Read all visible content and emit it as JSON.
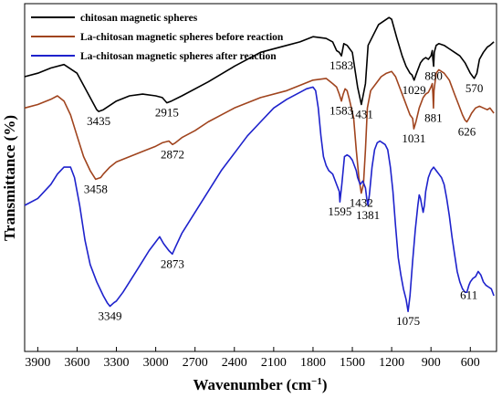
{
  "chart_data": {
    "type": "line",
    "xlabel": "Wavenumber (cm",
    "xlabel_sup": "−1",
    "xlabel_close": ")",
    "ylabel": "Transmittance (%)",
    "xlim": [
      4000,
      400
    ],
    "x_reversed": true,
    "xticks": [
      3900,
      3600,
      3300,
      3000,
      2700,
      2400,
      2100,
      1800,
      1500,
      1200,
      900,
      600
    ],
    "ylim": [
      0,
      100
    ],
    "legend_position": "top-left",
    "series": [
      {
        "name": "chitosan magnetic spheres",
        "color": "#000000",
        "points": [
          [
            4000,
            79
          ],
          [
            3900,
            80
          ],
          [
            3800,
            81.5
          ],
          [
            3700,
            82.5
          ],
          [
            3600,
            80
          ],
          [
            3500,
            73
          ],
          [
            3450,
            69.5
          ],
          [
            3435,
            69
          ],
          [
            3400,
            69.5
          ],
          [
            3300,
            72
          ],
          [
            3200,
            73.5
          ],
          [
            3100,
            74
          ],
          [
            3000,
            73.5
          ],
          [
            2950,
            73
          ],
          [
            2915,
            71.5
          ],
          [
            2880,
            72
          ],
          [
            2800,
            73.5
          ],
          [
            2600,
            77.5
          ],
          [
            2400,
            82
          ],
          [
            2200,
            86
          ],
          [
            2000,
            88
          ],
          [
            1900,
            89
          ],
          [
            1800,
            90.5
          ],
          [
            1700,
            90
          ],
          [
            1650,
            89
          ],
          [
            1620,
            86.5
          ],
          [
            1600,
            86
          ],
          [
            1583,
            85
          ],
          [
            1565,
            88.5
          ],
          [
            1540,
            88
          ],
          [
            1500,
            86
          ],
          [
            1460,
            76
          ],
          [
            1431,
            71
          ],
          [
            1400,
            77
          ],
          [
            1380,
            88
          ],
          [
            1340,
            91
          ],
          [
            1300,
            94
          ],
          [
            1260,
            95
          ],
          [
            1220,
            96
          ],
          [
            1200,
            95.5
          ],
          [
            1160,
            90
          ],
          [
            1120,
            85
          ],
          [
            1090,
            82
          ],
          [
            1060,
            80
          ],
          [
            1045,
            79.5
          ],
          [
            1029,
            78
          ],
          [
            1010,
            80
          ],
          [
            980,
            83
          ],
          [
            960,
            84
          ],
          [
            940,
            84.5
          ],
          [
            920,
            84
          ],
          [
            900,
            85
          ],
          [
            890,
            86.5
          ],
          [
            885,
            84
          ],
          [
            880,
            82
          ],
          [
            875,
            86
          ],
          [
            860,
            88
          ],
          [
            840,
            88.5
          ],
          [
            800,
            88
          ],
          [
            760,
            87
          ],
          [
            720,
            86
          ],
          [
            680,
            85
          ],
          [
            640,
            83
          ],
          [
            600,
            80
          ],
          [
            580,
            79
          ],
          [
            570,
            78.5
          ],
          [
            550,
            80
          ],
          [
            530,
            84
          ],
          [
            500,
            86
          ],
          [
            470,
            87.5
          ],
          [
            450,
            88
          ],
          [
            420,
            89
          ]
        ]
      },
      {
        "name": "La-chitosan magnetic spheres before reaction",
        "color": "#a0441e",
        "points": [
          [
            4000,
            70
          ],
          [
            3900,
            71
          ],
          [
            3800,
            72.5
          ],
          [
            3750,
            73.5
          ],
          [
            3700,
            72
          ],
          [
            3650,
            68
          ],
          [
            3600,
            62
          ],
          [
            3550,
            56
          ],
          [
            3500,
            52
          ],
          [
            3458,
            49.5
          ],
          [
            3420,
            50
          ],
          [
            3400,
            51
          ],
          [
            3350,
            53
          ],
          [
            3300,
            54.5
          ],
          [
            3200,
            56
          ],
          [
            3100,
            57.5
          ],
          [
            3000,
            59
          ],
          [
            2950,
            60
          ],
          [
            2900,
            60.5
          ],
          [
            2872,
            59.5
          ],
          [
            2850,
            60
          ],
          [
            2800,
            61.5
          ],
          [
            2700,
            63.5
          ],
          [
            2600,
            66
          ],
          [
            2400,
            70
          ],
          [
            2200,
            73
          ],
          [
            2000,
            75
          ],
          [
            1900,
            76.5
          ],
          [
            1800,
            78
          ],
          [
            1700,
            78.5
          ],
          [
            1650,
            77
          ],
          [
            1620,
            76
          ],
          [
            1600,
            74
          ],
          [
            1583,
            72
          ],
          [
            1570,
            74
          ],
          [
            1555,
            75.5
          ],
          [
            1540,
            75
          ],
          [
            1520,
            72
          ],
          [
            1490,
            67
          ],
          [
            1470,
            58
          ],
          [
            1450,
            50
          ],
          [
            1432,
            45.5
          ],
          [
            1415,
            48
          ],
          [
            1400,
            58
          ],
          [
            1385,
            70
          ],
          [
            1360,
            75
          ],
          [
            1320,
            77
          ],
          [
            1280,
            79
          ],
          [
            1240,
            80
          ],
          [
            1200,
            80.5
          ],
          [
            1170,
            79
          ],
          [
            1140,
            76
          ],
          [
            1100,
            72
          ],
          [
            1060,
            68
          ],
          [
            1040,
            67
          ],
          [
            1031,
            64
          ],
          [
            1015,
            66
          ],
          [
            990,
            70
          ],
          [
            960,
            73
          ],
          [
            940,
            74
          ],
          [
            920,
            74.5
          ],
          [
            900,
            76
          ],
          [
            890,
            77
          ],
          [
            885,
            74
          ],
          [
            881,
            70
          ],
          [
            877,
            75
          ],
          [
            860,
            80
          ],
          [
            840,
            81
          ],
          [
            800,
            80
          ],
          [
            760,
            78
          ],
          [
            720,
            74
          ],
          [
            690,
            71
          ],
          [
            660,
            68
          ],
          [
            640,
            66.5
          ],
          [
            626,
            66
          ],
          [
            610,
            67
          ],
          [
            590,
            68.5
          ],
          [
            560,
            70
          ],
          [
            530,
            70.5
          ],
          [
            500,
            70
          ],
          [
            470,
            69.5
          ],
          [
            450,
            70
          ],
          [
            430,
            69
          ],
          [
            420,
            68.5
          ]
        ]
      },
      {
        "name": "La-chitosan magnetic spheres after reaction",
        "color": "#1e22cc",
        "points": [
          [
            4000,
            42
          ],
          [
            3900,
            44
          ],
          [
            3800,
            48
          ],
          [
            3750,
            51
          ],
          [
            3700,
            53
          ],
          [
            3650,
            53
          ],
          [
            3620,
            50
          ],
          [
            3580,
            42
          ],
          [
            3540,
            32
          ],
          [
            3500,
            25
          ],
          [
            3450,
            20
          ],
          [
            3400,
            16
          ],
          [
            3370,
            14
          ],
          [
            3349,
            13
          ],
          [
            3320,
            14
          ],
          [
            3300,
            14.5
          ],
          [
            3250,
            17
          ],
          [
            3200,
            20
          ],
          [
            3150,
            23
          ],
          [
            3100,
            26
          ],
          [
            3050,
            29
          ],
          [
            3000,
            31.5
          ],
          [
            2970,
            33
          ],
          [
            2940,
            31
          ],
          [
            2900,
            29
          ],
          [
            2873,
            28
          ],
          [
            2850,
            30
          ],
          [
            2800,
            34
          ],
          [
            2700,
            40
          ],
          [
            2600,
            46
          ],
          [
            2500,
            52
          ],
          [
            2400,
            57
          ],
          [
            2300,
            62
          ],
          [
            2200,
            66
          ],
          [
            2100,
            70
          ],
          [
            2000,
            72.5
          ],
          [
            1900,
            74.5
          ],
          [
            1850,
            75.5
          ],
          [
            1800,
            76
          ],
          [
            1780,
            75
          ],
          [
            1760,
            70
          ],
          [
            1740,
            62
          ],
          [
            1720,
            56
          ],
          [
            1700,
            53.5
          ],
          [
            1680,
            52
          ],
          [
            1650,
            51
          ],
          [
            1620,
            48
          ],
          [
            1600,
            46
          ],
          [
            1595,
            43
          ],
          [
            1580,
            48
          ],
          [
            1560,
            56
          ],
          [
            1540,
            56.5
          ],
          [
            1520,
            56
          ],
          [
            1500,
            55
          ],
          [
            1480,
            53
          ],
          [
            1470,
            52
          ],
          [
            1460,
            50
          ],
          [
            1440,
            48
          ],
          [
            1420,
            49
          ],
          [
            1400,
            47
          ],
          [
            1390,
            44
          ],
          [
            1381,
            42
          ],
          [
            1370,
            45
          ],
          [
            1350,
            53
          ],
          [
            1330,
            58
          ],
          [
            1310,
            60
          ],
          [
            1290,
            60.5
          ],
          [
            1270,
            60
          ],
          [
            1250,
            59.5
          ],
          [
            1230,
            58
          ],
          [
            1210,
            53
          ],
          [
            1190,
            46
          ],
          [
            1170,
            36
          ],
          [
            1150,
            27
          ],
          [
            1130,
            22
          ],
          [
            1110,
            18
          ],
          [
            1090,
            15
          ],
          [
            1075,
            11.5
          ],
          [
            1060,
            16
          ],
          [
            1040,
            26
          ],
          [
            1020,
            35
          ],
          [
            1000,
            42
          ],
          [
            990,
            45
          ],
          [
            980,
            44
          ],
          [
            970,
            42
          ],
          [
            960,
            40
          ],
          [
            950,
            42
          ],
          [
            940,
            46
          ],
          [
            920,
            50
          ],
          [
            900,
            52
          ],
          [
            880,
            53
          ],
          [
            860,
            52
          ],
          [
            840,
            51
          ],
          [
            820,
            50
          ],
          [
            800,
            48
          ],
          [
            780,
            44
          ],
          [
            760,
            39
          ],
          [
            740,
            33
          ],
          [
            720,
            28
          ],
          [
            700,
            23
          ],
          [
            680,
            20
          ],
          [
            660,
            18
          ],
          [
            640,
            17
          ],
          [
            626,
            17
          ],
          [
            611,
            19
          ],
          [
            600,
            20
          ],
          [
            580,
            21
          ],
          [
            560,
            21.5
          ],
          [
            540,
            23
          ],
          [
            520,
            22
          ],
          [
            500,
            20
          ],
          [
            480,
            19
          ],
          [
            460,
            18.5
          ],
          [
            440,
            18
          ],
          [
            420,
            16
          ]
        ]
      }
    ],
    "annotations": [
      {
        "text": "3435",
        "x": 3435,
        "y": 69
      },
      {
        "text": "2915",
        "x": 2915,
        "y": 71.5
      },
      {
        "text": "1583",
        "x": 1583,
        "y": 85
      },
      {
        "text": "1431",
        "x": 1431,
        "y": 71
      },
      {
        "text": "1029",
        "x": 1029,
        "y": 78
      },
      {
        "text": "880",
        "x": 880,
        "y": 82
      },
      {
        "text": "570",
        "x": 570,
        "y": 78.5
      },
      {
        "text": "3458",
        "x": 3458,
        "y": 49.5
      },
      {
        "text": "2872",
        "x": 2872,
        "y": 59.5
      },
      {
        "text": "1583",
        "x": 1583,
        "y": 72
      },
      {
        "text": "1432",
        "x": 1432,
        "y": 45.5
      },
      {
        "text": "1031",
        "x": 1031,
        "y": 64
      },
      {
        "text": "881",
        "x": 881,
        "y": 70
      },
      {
        "text": "626",
        "x": 626,
        "y": 66
      },
      {
        "text": "3349",
        "x": 3349,
        "y": 13
      },
      {
        "text": "2873",
        "x": 2873,
        "y": 28
      },
      {
        "text": "1595",
        "x": 1595,
        "y": 43
      },
      {
        "text": "1381",
        "x": 1381,
        "y": 42
      },
      {
        "text": "1075",
        "x": 1075,
        "y": 11.5
      },
      {
        "text": "611",
        "x": 611,
        "y": 19
      }
    ]
  }
}
